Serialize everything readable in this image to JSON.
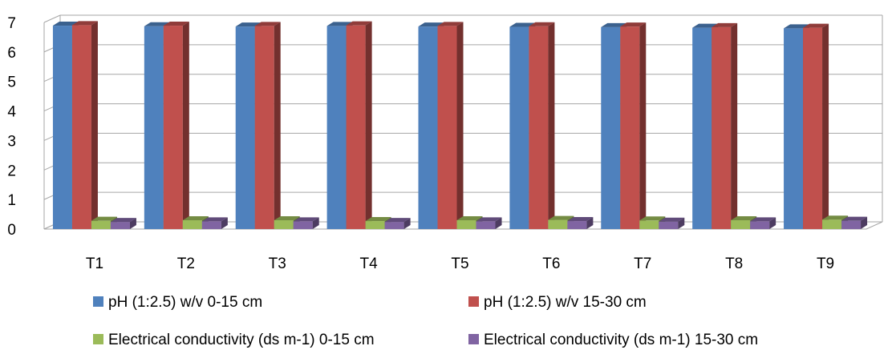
{
  "chart_data": {
    "type": "bar",
    "title": "",
    "xlabel": "",
    "ylabel": "",
    "categories": [
      "T1",
      "T2",
      "T3",
      "T4",
      "T5",
      "T6",
      "T7",
      "T8",
      "T9"
    ],
    "ylim": [
      0,
      7
    ],
    "yticks": [
      "0",
      "1",
      "2",
      "3",
      "4",
      "5",
      "6",
      "7"
    ],
    "grid": true,
    "legend_position": "bottom",
    "style": "3d-clustered-column",
    "series": [
      {
        "name": "pH (1:2.5) w/v 0-15 cm",
        "color": "#4f81bd",
        "values": [
          6.89,
          6.87,
          6.86,
          6.88,
          6.86,
          6.85,
          6.84,
          6.82,
          6.8
        ]
      },
      {
        "name": "pH (1:2.5) w/v 15-30 cm",
        "color": "#c0504d",
        "values": [
          6.91,
          6.89,
          6.88,
          6.9,
          6.88,
          6.87,
          6.86,
          6.84,
          6.82
        ]
      },
      {
        "name": "Electrical conductivity (ds m-1) 0-15 cm",
        "color": "#9bbb59",
        "values": [
          0.28,
          0.3,
          0.3,
          0.27,
          0.3,
          0.31,
          0.29,
          0.3,
          0.32
        ]
      },
      {
        "name": "Electrical conductivity (ds m-1) 15-30 cm",
        "color": "#8064a2",
        "values": [
          0.24,
          0.26,
          0.26,
          0.24,
          0.26,
          0.27,
          0.25,
          0.26,
          0.28
        ]
      }
    ]
  }
}
